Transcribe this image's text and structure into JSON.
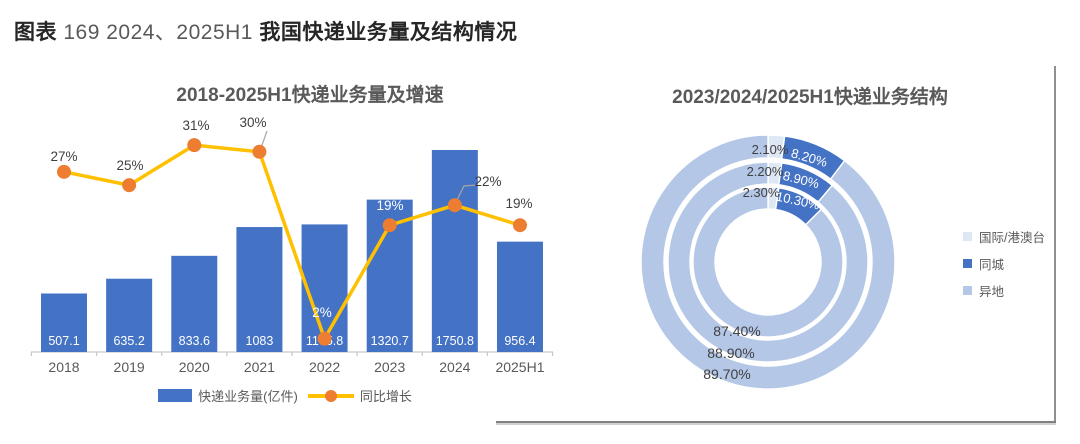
{
  "header": {
    "prefix": "图表",
    "mid": " 169 2024、2025H1 ",
    "rest": "我国快递业务量及结构情况"
  },
  "colors": {
    "bar": "#4472C4",
    "line": "#FFC000",
    "marker": "#ED7D31",
    "intl": "#DEE7F4",
    "city": "#4472C4",
    "yidi": "#B4C7E7",
    "axis": "#C9C9C9",
    "label_dark": "#404040",
    "text_gray": "#595959",
    "value_white": "#FFFFFF"
  },
  "chart_data": [
    {
      "type": "bar",
      "title": "2018-2025H1快递业务量及增速",
      "categories": [
        "2018",
        "2019",
        "2020",
        "2021",
        "2022",
        "2023",
        "2024",
        "2025H1"
      ],
      "series": [
        {
          "name": "快递业务量(亿件)",
          "type": "bar",
          "values": [
            507.1,
            635.2,
            833.6,
            1083,
            1105.8,
            1320.7,
            1750.8,
            956.4
          ],
          "value_labels": [
            "507.1",
            "635.2",
            "833.6",
            "1083",
            "1105.8",
            "1320.7",
            "1750.8",
            "956.4"
          ]
        },
        {
          "name": "同比增长",
          "type": "line",
          "values": [
            27,
            25,
            31,
            30,
            2,
            19,
            22,
            19
          ],
          "value_labels": [
            "27%",
            "25%",
            "31%",
            "30%",
            "2%",
            "19%",
            "22%",
            "19%"
          ]
        }
      ],
      "ylim_bars": [
        0,
        1750.8
      ],
      "grid": false,
      "legend_position": "bottom"
    },
    {
      "type": "pie",
      "subtype": "multi-ring-donut",
      "title": "2023/2024/2025H1快递业务结构",
      "legend": [
        {
          "label": "国际/港澳台",
          "key": "intl"
        },
        {
          "label": "同城",
          "key": "city"
        },
        {
          "label": "异地",
          "key": "yidi"
        }
      ],
      "rings": [
        {
          "year": "2023",
          "segments": [
            {
              "name": "国际/港澳台",
              "key": "intl",
              "value": 2.3,
              "label": "2.30%"
            },
            {
              "name": "同城",
              "key": "city",
              "value": 10.3,
              "label": "10.30%"
            },
            {
              "name": "异地",
              "key": "yidi",
              "value": 87.4,
              "label": "87.40%"
            }
          ]
        },
        {
          "year": "2024",
          "segments": [
            {
              "name": "国际/港澳台",
              "key": "intl",
              "value": 2.2,
              "label": "2.20%"
            },
            {
              "name": "同城",
              "key": "city",
              "value": 8.9,
              "label": "8.90%"
            },
            {
              "name": "异地",
              "key": "yidi",
              "value": 88.9,
              "label": "88.90%"
            }
          ]
        },
        {
          "year": "2025H1",
          "segments": [
            {
              "name": "国际/港澳台",
              "key": "intl",
              "value": 2.1,
              "label": "2.10%"
            },
            {
              "name": "同城",
              "key": "city",
              "value": 8.2,
              "label": "8.20%"
            },
            {
              "name": "异地",
              "key": "yidi",
              "value": 89.7,
              "label": "89.70%"
            }
          ]
        }
      ],
      "legend_position": "right"
    }
  ]
}
